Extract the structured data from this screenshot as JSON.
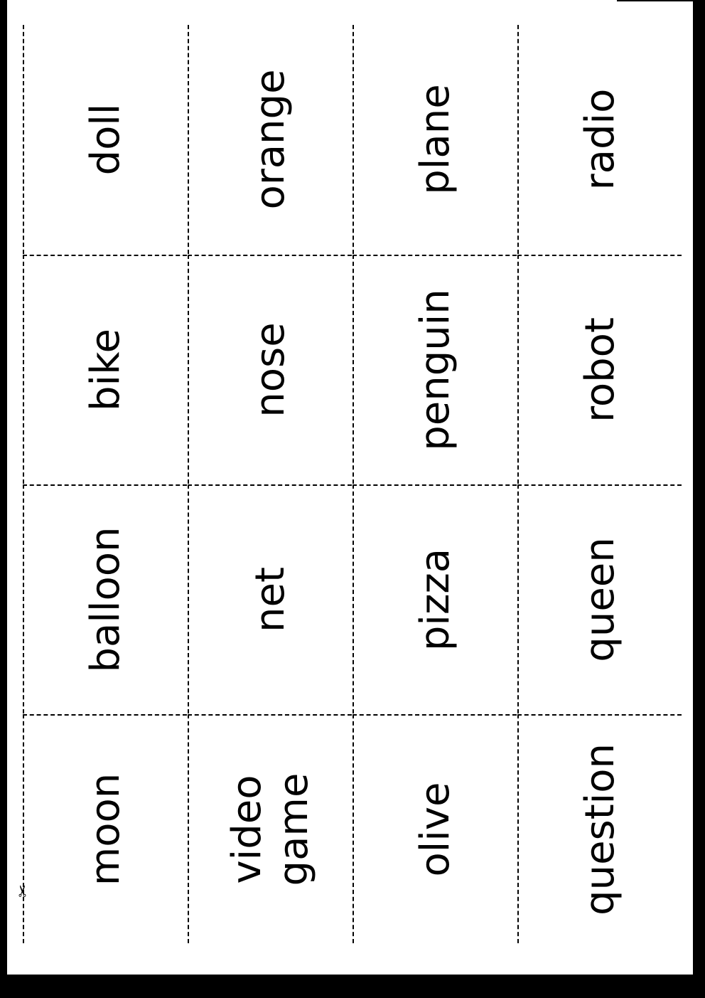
{
  "cards": {
    "columns": [
      [
        "doll",
        "bike",
        "balloon",
        "moon"
      ],
      [
        "orange",
        "nose",
        "net",
        "video\ngame"
      ],
      [
        "plane",
        "penguin",
        "pizza",
        "olive"
      ],
      [
        "radio",
        "robot",
        "queen",
        "question"
      ]
    ]
  },
  "icons": {
    "cut_line": "scissors-icon"
  }
}
